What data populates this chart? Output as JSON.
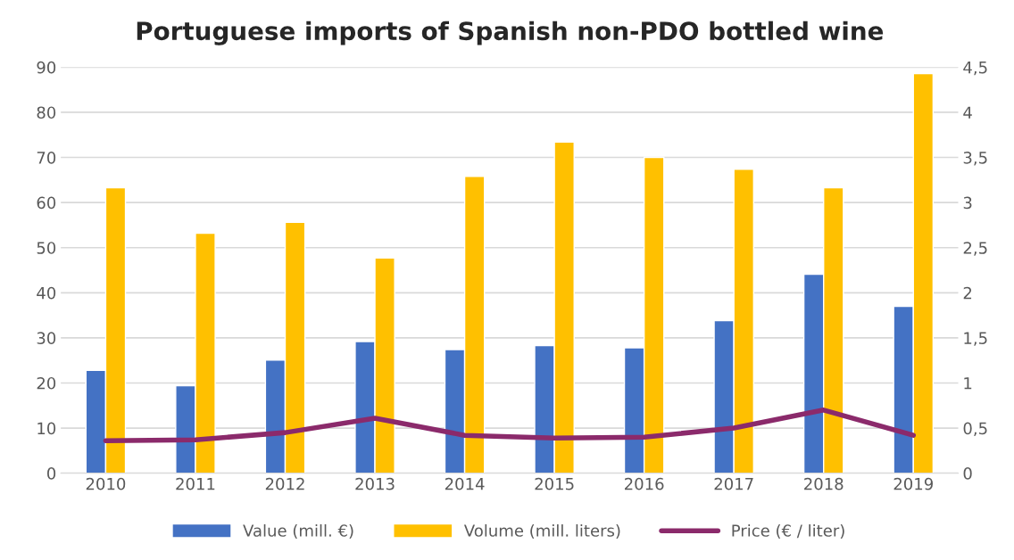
{
  "chart_data": {
    "type": "bar",
    "title": "Portuguese imports of Spanish non-PDO bottled wine",
    "categories": [
      "2010",
      "2011",
      "2012",
      "2013",
      "2014",
      "2015",
      "2016",
      "2017",
      "2018",
      "2019"
    ],
    "series": [
      {
        "name": "Value (mill. €)",
        "color": "#4472c4",
        "values": [
          22.8,
          19.4,
          25.1,
          29.2,
          27.4,
          28.3,
          27.8,
          33.8,
          44.1,
          37.0
        ]
      },
      {
        "name": "Volume (mill. liters)",
        "color": "#ffc000",
        "values": [
          63.3,
          53.2,
          55.6,
          47.7,
          65.8,
          73.4,
          70.0,
          67.4,
          63.3,
          88.6
        ]
      },
      {
        "name": "Price (€ / liter)",
        "type": "line",
        "axis": "y2",
        "color": "#8b2a6b",
        "values": [
          0.36,
          0.37,
          0.45,
          0.61,
          0.42,
          0.39,
          0.4,
          0.5,
          0.7,
          0.42
        ]
      }
    ],
    "ylim": [
      0,
      90
    ],
    "yticks": [
      0,
      10,
      20,
      30,
      40,
      50,
      60,
      70,
      80,
      90
    ],
    "y2lim": [
      0,
      4.5
    ],
    "y2ticks": [
      0,
      {
        "value": 0.5,
        "label": "0,5"
      },
      1,
      {
        "value": 1.5,
        "label": "1,5"
      },
      2,
      {
        "value": 2.5,
        "label": "2,5"
      },
      3,
      {
        "value": 3.5,
        "label": "3,5"
      },
      4,
      {
        "value": 4.5,
        "label": "4,5"
      }
    ],
    "grid": "y",
    "legend": "bottom",
    "marker": "none"
  }
}
